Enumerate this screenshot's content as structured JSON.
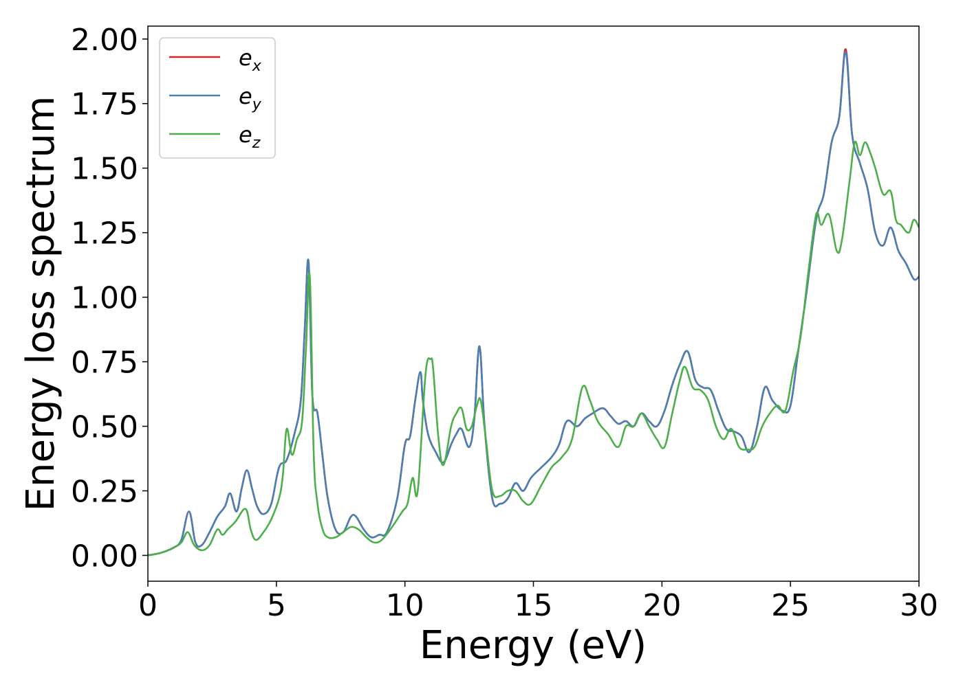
{
  "chart_data": {
    "type": "line",
    "title": "",
    "xlabel": "Energy (eV)",
    "ylabel": "Energy loss spectrum",
    "xlim": [
      0,
      30
    ],
    "ylim": [
      -0.1,
      2.05
    ],
    "xticks": [
      0,
      5,
      10,
      15,
      20,
      25,
      30
    ],
    "xtick_labels": [
      "0",
      "5",
      "10",
      "15",
      "20",
      "25",
      "30"
    ],
    "yticks": [
      0,
      0.25,
      0.5,
      0.75,
      1.0,
      1.25,
      1.5,
      1.75,
      2.0
    ],
    "ytick_labels": [
      "0.00",
      "0.25",
      "0.50",
      "0.75",
      "1.00",
      "1.25",
      "1.50",
      "1.75",
      "2.00"
    ],
    "grid": false,
    "legend_position": "top-left",
    "series": [
      {
        "name": "e",
        "subscript": "x",
        "color": "#d62728",
        "x": [
          0,
          0.5,
          1.0,
          1.3,
          1.6,
          1.85,
          2.1,
          2.4,
          2.7,
          3.0,
          3.2,
          3.45,
          3.65,
          3.85,
          4.05,
          4.25,
          4.5,
          4.8,
          5.1,
          5.4,
          5.7,
          5.95,
          6.1,
          6.25,
          6.4,
          6.6,
          6.8,
          7.0,
          7.3,
          7.6,
          7.9,
          8.1,
          8.4,
          8.7,
          9.0,
          9.3,
          9.7,
          10.0,
          10.2,
          10.4,
          10.6,
          10.7,
          10.9,
          11.2,
          11.5,
          11.8,
          12.0,
          12.2,
          12.5,
          12.7,
          12.9,
          13.1,
          13.4,
          13.7,
          14.0,
          14.3,
          14.6,
          14.9,
          15.3,
          15.7,
          16.0,
          16.3,
          16.7,
          17.0,
          17.3,
          17.7,
          18.0,
          18.3,
          18.6,
          18.9,
          19.2,
          19.5,
          19.8,
          20.1,
          20.4,
          20.7,
          21.0,
          21.3,
          21.6,
          21.9,
          22.2,
          22.5,
          22.8,
          23.1,
          23.4,
          23.7,
          24.0,
          24.3,
          24.7,
          25.0,
          25.3,
          25.6,
          26.0,
          26.3,
          26.6,
          26.9,
          27.15,
          27.4,
          27.7,
          28.0,
          28.3,
          28.6,
          28.9,
          29.2,
          29.5,
          29.8,
          30.0
        ],
        "y": [
          0.0,
          0.01,
          0.03,
          0.06,
          0.17,
          0.05,
          0.04,
          0.09,
          0.15,
          0.19,
          0.24,
          0.17,
          0.26,
          0.33,
          0.26,
          0.19,
          0.16,
          0.2,
          0.34,
          0.37,
          0.47,
          0.6,
          0.87,
          1.14,
          0.62,
          0.55,
          0.38,
          0.22,
          0.1,
          0.09,
          0.15,
          0.15,
          0.1,
          0.07,
          0.08,
          0.09,
          0.22,
          0.43,
          0.46,
          0.6,
          0.71,
          0.6,
          0.47,
          0.4,
          0.36,
          0.43,
          0.47,
          0.49,
          0.42,
          0.53,
          0.81,
          0.5,
          0.22,
          0.2,
          0.22,
          0.28,
          0.25,
          0.3,
          0.34,
          0.38,
          0.43,
          0.52,
          0.5,
          0.53,
          0.55,
          0.57,
          0.54,
          0.51,
          0.52,
          0.5,
          0.55,
          0.52,
          0.5,
          0.56,
          0.66,
          0.74,
          0.79,
          0.68,
          0.65,
          0.64,
          0.56,
          0.49,
          0.48,
          0.46,
          0.4,
          0.5,
          0.65,
          0.6,
          0.56,
          0.58,
          0.79,
          1.0,
          1.3,
          1.4,
          1.6,
          1.7,
          1.96,
          1.63,
          1.52,
          1.42,
          1.25,
          1.2,
          1.27,
          1.18,
          1.13,
          1.07,
          1.08
        ]
      },
      {
        "name": "e",
        "subscript": "y",
        "color": "#4a7fb5",
        "x": [
          0,
          0.5,
          1.0,
          1.3,
          1.6,
          1.85,
          2.1,
          2.4,
          2.7,
          3.0,
          3.2,
          3.45,
          3.65,
          3.85,
          4.05,
          4.25,
          4.5,
          4.8,
          5.1,
          5.4,
          5.7,
          5.95,
          6.1,
          6.25,
          6.4,
          6.6,
          6.8,
          7.0,
          7.3,
          7.6,
          7.9,
          8.1,
          8.4,
          8.7,
          9.0,
          9.3,
          9.7,
          10.0,
          10.2,
          10.4,
          10.6,
          10.7,
          10.9,
          11.2,
          11.5,
          11.8,
          12.0,
          12.2,
          12.5,
          12.7,
          12.9,
          13.1,
          13.4,
          13.7,
          14.0,
          14.3,
          14.6,
          14.9,
          15.3,
          15.7,
          16.0,
          16.3,
          16.7,
          17.0,
          17.3,
          17.7,
          18.0,
          18.3,
          18.6,
          18.9,
          19.2,
          19.5,
          19.8,
          20.1,
          20.4,
          20.7,
          21.0,
          21.3,
          21.6,
          21.9,
          22.2,
          22.5,
          22.8,
          23.1,
          23.4,
          23.7,
          24.0,
          24.3,
          24.7,
          25.0,
          25.3,
          25.6,
          26.0,
          26.3,
          26.6,
          26.9,
          27.15,
          27.4,
          27.7,
          28.0,
          28.3,
          28.6,
          28.9,
          29.2,
          29.5,
          29.8,
          30.0
        ],
        "y": [
          0.0,
          0.01,
          0.03,
          0.06,
          0.17,
          0.05,
          0.04,
          0.09,
          0.15,
          0.19,
          0.24,
          0.17,
          0.26,
          0.33,
          0.26,
          0.19,
          0.16,
          0.2,
          0.34,
          0.37,
          0.47,
          0.6,
          0.87,
          1.14,
          0.62,
          0.55,
          0.38,
          0.22,
          0.1,
          0.09,
          0.15,
          0.15,
          0.1,
          0.07,
          0.08,
          0.09,
          0.22,
          0.43,
          0.46,
          0.6,
          0.71,
          0.6,
          0.47,
          0.4,
          0.36,
          0.43,
          0.47,
          0.49,
          0.42,
          0.53,
          0.81,
          0.5,
          0.22,
          0.2,
          0.22,
          0.28,
          0.25,
          0.3,
          0.34,
          0.38,
          0.43,
          0.52,
          0.5,
          0.53,
          0.55,
          0.57,
          0.54,
          0.51,
          0.52,
          0.5,
          0.55,
          0.52,
          0.5,
          0.56,
          0.66,
          0.74,
          0.79,
          0.68,
          0.65,
          0.64,
          0.56,
          0.49,
          0.48,
          0.46,
          0.4,
          0.5,
          0.65,
          0.6,
          0.56,
          0.58,
          0.79,
          1.0,
          1.3,
          1.4,
          1.6,
          1.7,
          1.95,
          1.63,
          1.52,
          1.42,
          1.25,
          1.2,
          1.27,
          1.18,
          1.13,
          1.07,
          1.08
        ]
      },
      {
        "name": "e",
        "subscript": "z",
        "color": "#4daf4a",
        "x": [
          0,
          0.5,
          1.0,
          1.3,
          1.55,
          1.8,
          2.1,
          2.4,
          2.7,
          2.9,
          3.1,
          3.4,
          3.8,
          4.0,
          4.2,
          4.5,
          4.8,
          5.1,
          5.25,
          5.4,
          5.6,
          5.8,
          6.0,
          6.15,
          6.3,
          6.45,
          6.6,
          6.8,
          7.0,
          7.3,
          7.6,
          7.9,
          8.2,
          8.5,
          8.8,
          9.1,
          9.5,
          9.9,
          10.1,
          10.3,
          10.5,
          10.8,
          11.0,
          11.1,
          11.3,
          11.5,
          11.8,
          12.0,
          12.2,
          12.4,
          12.6,
          12.8,
          12.95,
          13.15,
          13.4,
          13.7,
          14.0,
          14.3,
          14.6,
          14.9,
          15.3,
          15.7,
          16.1,
          16.5,
          16.9,
          17.2,
          17.5,
          17.9,
          18.3,
          18.6,
          18.9,
          19.2,
          19.5,
          19.8,
          20.1,
          20.4,
          20.7,
          20.9,
          21.2,
          21.5,
          21.8,
          22.1,
          22.4,
          22.7,
          23.0,
          23.3,
          23.6,
          23.9,
          24.2,
          24.5,
          24.8,
          25.1,
          25.4,
          25.7,
          26.0,
          26.2,
          26.5,
          26.8,
          27.0,
          27.3,
          27.5,
          27.7,
          27.9,
          28.1,
          28.3,
          28.6,
          28.9,
          29.1,
          29.3,
          29.6,
          29.8,
          30.0
        ],
        "y": [
          0.0,
          0.01,
          0.03,
          0.05,
          0.09,
          0.04,
          0.02,
          0.04,
          0.1,
          0.08,
          0.1,
          0.13,
          0.18,
          0.1,
          0.06,
          0.09,
          0.14,
          0.22,
          0.31,
          0.49,
          0.39,
          0.45,
          0.52,
          0.8,
          1.08,
          0.4,
          0.2,
          0.1,
          0.07,
          0.07,
          0.09,
          0.11,
          0.1,
          0.07,
          0.05,
          0.06,
          0.11,
          0.17,
          0.2,
          0.3,
          0.25,
          0.7,
          0.76,
          0.72,
          0.46,
          0.35,
          0.5,
          0.55,
          0.57,
          0.49,
          0.5,
          0.58,
          0.6,
          0.45,
          0.25,
          0.23,
          0.25,
          0.25,
          0.21,
          0.2,
          0.27,
          0.34,
          0.38,
          0.45,
          0.65,
          0.6,
          0.52,
          0.47,
          0.42,
          0.5,
          0.5,
          0.55,
          0.5,
          0.45,
          0.42,
          0.55,
          0.68,
          0.73,
          0.65,
          0.64,
          0.6,
          0.5,
          0.45,
          0.49,
          0.42,
          0.41,
          0.42,
          0.5,
          0.55,
          0.58,
          0.56,
          0.71,
          0.85,
          1.1,
          1.32,
          1.28,
          1.32,
          1.18,
          1.22,
          1.45,
          1.6,
          1.55,
          1.6,
          1.56,
          1.5,
          1.4,
          1.41,
          1.3,
          1.28,
          1.25,
          1.3,
          1.27
        ]
      }
    ]
  }
}
